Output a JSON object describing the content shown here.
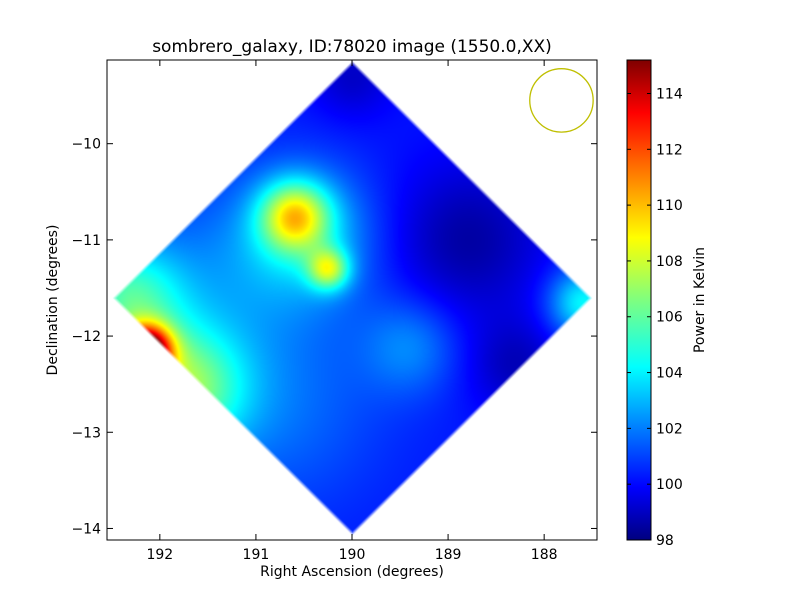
{
  "chart_data": {
    "type": "heatmap",
    "title": "sombrero_galaxy, ID:78020 image (1550.0,XX)",
    "xlabel": "Right Ascension (degrees)",
    "ylabel": "Declination (degrees)",
    "xlim": [
      192.55,
      187.45
    ],
    "ylim": [
      -14.12,
      -9.13
    ],
    "xticks": [
      {
        "value": 192,
        "label": "192"
      },
      {
        "value": 191,
        "label": "191"
      },
      {
        "value": 190,
        "label": "190"
      },
      {
        "value": 189,
        "label": "189"
      },
      {
        "value": 188,
        "label": "188"
      }
    ],
    "yticks": [
      {
        "value": -10,
        "label": "−10"
      },
      {
        "value": -11,
        "label": "−11"
      },
      {
        "value": -12,
        "label": "−12"
      },
      {
        "value": -13,
        "label": "−13"
      },
      {
        "value": -14,
        "label": "−14"
      }
    ],
    "colorbar": {
      "label": "Power in Kelvin",
      "min": 98,
      "max": 115.2,
      "colormap": "jet",
      "ticks": [
        {
          "value": 98,
          "label": "98"
        },
        {
          "value": 100,
          "label": "100"
        },
        {
          "value": 102,
          "label": "102"
        },
        {
          "value": 104,
          "label": "104"
        },
        {
          "value": 106,
          "label": "106"
        },
        {
          "value": 108,
          "label": "108"
        },
        {
          "value": 110,
          "label": "110"
        },
        {
          "value": 112,
          "label": "112"
        },
        {
          "value": 114,
          "label": "114"
        }
      ]
    },
    "footprint": {
      "shape": "diamond",
      "center_ra": 190.0,
      "center_dec": -11.6,
      "half_width_ra": 2.5,
      "half_height_dec": 2.47,
      "background_value": 100.5
    },
    "features": [
      {
        "ra": 192.15,
        "dec": -12.15,
        "sigma": 0.18,
        "value": 114.5
      },
      {
        "ra": 191.8,
        "dec": -12.55,
        "sigma": 0.45,
        "value": 106.5
      },
      {
        "ra": 192.35,
        "dec": -11.6,
        "sigma": 0.4,
        "value": 105
      },
      {
        "ra": 190.6,
        "dec": -10.75,
        "sigma": 0.25,
        "value": 107
      },
      {
        "ra": 190.5,
        "dec": -10.95,
        "sigma": 0.5,
        "value": 103.5
      },
      {
        "ra": 190.25,
        "dec": -11.3,
        "sigma": 0.15,
        "value": 106
      },
      {
        "ra": 188.8,
        "dec": -11.0,
        "sigma": 0.55,
        "value": 98.6
      },
      {
        "ra": 188.3,
        "dec": -12.3,
        "sigma": 0.35,
        "value": 99.0
      },
      {
        "ra": 187.6,
        "dec": -11.65,
        "sigma": 0.25,
        "value": 104.5
      },
      {
        "ra": 189.4,
        "dec": -12.1,
        "sigma": 0.35,
        "value": 102.3
      },
      {
        "ra": 190.8,
        "dec": -12.7,
        "sigma": 0.8,
        "value": 102.0
      },
      {
        "ra": 190.0,
        "dec": -9.3,
        "sigma": 0.3,
        "value": 99.2
      },
      {
        "ra": 191.5,
        "dec": -11.4,
        "sigma": 0.7,
        "value": 101.8
      }
    ],
    "beam_circle": {
      "ra": 187.82,
      "dec": -9.55,
      "radius_deg": 0.33,
      "color": "#bfbf00"
    }
  }
}
